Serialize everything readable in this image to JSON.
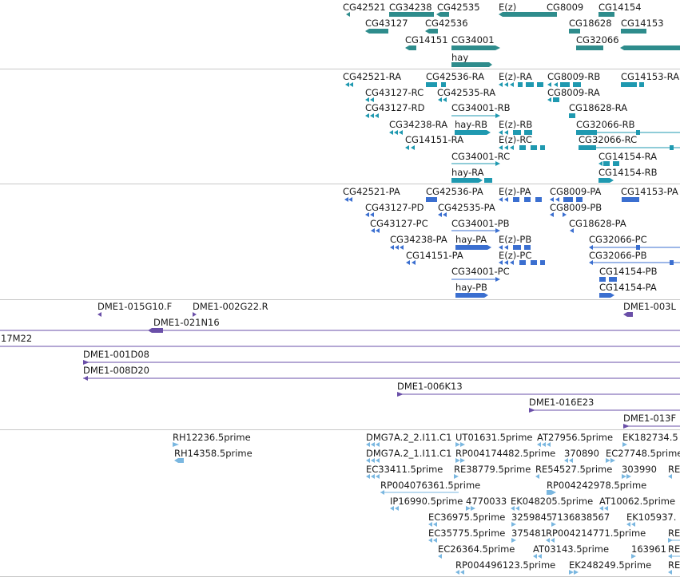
{
  "colors": {
    "gene": "#2e8c8c",
    "transcript": "#1f99b0",
    "protein": "#3b6fd0",
    "clone": "#6a4fa8",
    "est": "#7ab7e0",
    "separator": "#c8c8c8"
  },
  "tracks": {
    "genes": {
      "labels": [
        "CG42521",
        "CG34238",
        "CG42535",
        "E(z)",
        "CG8009",
        "CG14154",
        "CG43127",
        "CG42536",
        "CG18628",
        "CG14153",
        "CG14151",
        "CG34001",
        "CG32066",
        "hay"
      ]
    },
    "transcripts": {
      "labels": [
        "CG42521-RA",
        "CG42536-RA",
        "E(z)-RA",
        "CG8009-RB",
        "CG14153-RA",
        "CG43127-RC",
        "CG42535-RA",
        "CG8009-RA",
        "CG43127-RD",
        "CG34001-RB",
        "CG18628-RA",
        "CG34238-RA",
        "hay-RB",
        "E(z)-RB",
        "CG32066-RB",
        "CG14151-RA",
        "E(z)-RC",
        "CG32066-RC",
        "CG34001-RC",
        "CG14154-RA",
        "hay-RA",
        "CG14154-RB"
      ]
    },
    "proteins": {
      "labels": [
        "CG42521-PA",
        "CG42536-PA",
        "E(z)-PA",
        "CG8009-PA",
        "CG14153-PA",
        "CG43127-PD",
        "CG42535-PA",
        "CG8009-PB",
        "CG43127-PC",
        "CG34001-PB",
        "CG18628-PA",
        "CG34238-PA",
        "hay-PA",
        "E(z)-PB",
        "CG32066-PC",
        "CG14151-PA",
        "E(z)-PC",
        "CG32066-PB",
        "CG34001-PC",
        "CG14154-PB",
        "hay-PB",
        "CG14154-PA"
      ]
    },
    "clones": {
      "labels": [
        "DME1-015G10.F",
        "DME1-002G22.R",
        "DME1-003L",
        "DME1-021N16",
        "17M22",
        "DME1-001D08",
        "DME1-008D20",
        "DME1-006K13",
        "DME1-016E23",
        "DME1-013F"
      ]
    },
    "ests": {
      "labels": [
        "RH12236.5prime",
        "DMG7A.2_2.I11.C1",
        "UT01631.5prime",
        "AT27956.5prime",
        "EK182734.5",
        "RH14358.5prime",
        "DMG7A.2_1.I11.C1",
        "RP004174482.5prime",
        "370890",
        "EC27748.5prime",
        "EC33411.5prime",
        "RE38779.5prime",
        "RE54527.5prime",
        "303990",
        "RE",
        "RP004076361.5prime",
        "RP004242978.5prime",
        "IP16990.5prime",
        "4770033",
        "EK048205.5prime",
        "AT10062.5prime",
        "EC36975.5prime",
        "3259845",
        "7136838567",
        "EK105937.",
        "EC35775.5prime",
        "375481",
        "RP004214771.5prime",
        "RE",
        "EC26364.5prime",
        "AT03143.5prime",
        "163961",
        "RE",
        "RP004496123.5prime",
        "EK248249.5prime",
        "RE"
      ]
    }
  }
}
